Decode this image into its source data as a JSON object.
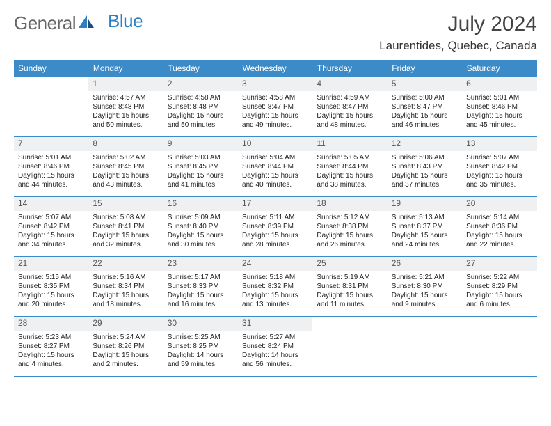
{
  "logo": {
    "text1": "General",
    "text2": "Blue"
  },
  "title": "July 2024",
  "location": "Laurentides, Quebec, Canada",
  "colors": {
    "header_bg": "#3b8bc9",
    "daynum_bg": "#eef0f2",
    "border": "#3b8bc9"
  },
  "weekdays": [
    "Sunday",
    "Monday",
    "Tuesday",
    "Wednesday",
    "Thursday",
    "Friday",
    "Saturday"
  ],
  "start_offset": 1,
  "days": [
    {
      "n": 1,
      "sr": "4:57 AM",
      "ss": "8:48 PM",
      "dl": "15 hours and 50 minutes."
    },
    {
      "n": 2,
      "sr": "4:58 AM",
      "ss": "8:48 PM",
      "dl": "15 hours and 50 minutes."
    },
    {
      "n": 3,
      "sr": "4:58 AM",
      "ss": "8:47 PM",
      "dl": "15 hours and 49 minutes."
    },
    {
      "n": 4,
      "sr": "4:59 AM",
      "ss": "8:47 PM",
      "dl": "15 hours and 48 minutes."
    },
    {
      "n": 5,
      "sr": "5:00 AM",
      "ss": "8:47 PM",
      "dl": "15 hours and 46 minutes."
    },
    {
      "n": 6,
      "sr": "5:01 AM",
      "ss": "8:46 PM",
      "dl": "15 hours and 45 minutes."
    },
    {
      "n": 7,
      "sr": "5:01 AM",
      "ss": "8:46 PM",
      "dl": "15 hours and 44 minutes."
    },
    {
      "n": 8,
      "sr": "5:02 AM",
      "ss": "8:45 PM",
      "dl": "15 hours and 43 minutes."
    },
    {
      "n": 9,
      "sr": "5:03 AM",
      "ss": "8:45 PM",
      "dl": "15 hours and 41 minutes."
    },
    {
      "n": 10,
      "sr": "5:04 AM",
      "ss": "8:44 PM",
      "dl": "15 hours and 40 minutes."
    },
    {
      "n": 11,
      "sr": "5:05 AM",
      "ss": "8:44 PM",
      "dl": "15 hours and 38 minutes."
    },
    {
      "n": 12,
      "sr": "5:06 AM",
      "ss": "8:43 PM",
      "dl": "15 hours and 37 minutes."
    },
    {
      "n": 13,
      "sr": "5:07 AM",
      "ss": "8:42 PM",
      "dl": "15 hours and 35 minutes."
    },
    {
      "n": 14,
      "sr": "5:07 AM",
      "ss": "8:42 PM",
      "dl": "15 hours and 34 minutes."
    },
    {
      "n": 15,
      "sr": "5:08 AM",
      "ss": "8:41 PM",
      "dl": "15 hours and 32 minutes."
    },
    {
      "n": 16,
      "sr": "5:09 AM",
      "ss": "8:40 PM",
      "dl": "15 hours and 30 minutes."
    },
    {
      "n": 17,
      "sr": "5:11 AM",
      "ss": "8:39 PM",
      "dl": "15 hours and 28 minutes."
    },
    {
      "n": 18,
      "sr": "5:12 AM",
      "ss": "8:38 PM",
      "dl": "15 hours and 26 minutes."
    },
    {
      "n": 19,
      "sr": "5:13 AM",
      "ss": "8:37 PM",
      "dl": "15 hours and 24 minutes."
    },
    {
      "n": 20,
      "sr": "5:14 AM",
      "ss": "8:36 PM",
      "dl": "15 hours and 22 minutes."
    },
    {
      "n": 21,
      "sr": "5:15 AM",
      "ss": "8:35 PM",
      "dl": "15 hours and 20 minutes."
    },
    {
      "n": 22,
      "sr": "5:16 AM",
      "ss": "8:34 PM",
      "dl": "15 hours and 18 minutes."
    },
    {
      "n": 23,
      "sr": "5:17 AM",
      "ss": "8:33 PM",
      "dl": "15 hours and 16 minutes."
    },
    {
      "n": 24,
      "sr": "5:18 AM",
      "ss": "8:32 PM",
      "dl": "15 hours and 13 minutes."
    },
    {
      "n": 25,
      "sr": "5:19 AM",
      "ss": "8:31 PM",
      "dl": "15 hours and 11 minutes."
    },
    {
      "n": 26,
      "sr": "5:21 AM",
      "ss": "8:30 PM",
      "dl": "15 hours and 9 minutes."
    },
    {
      "n": 27,
      "sr": "5:22 AM",
      "ss": "8:29 PM",
      "dl": "15 hours and 6 minutes."
    },
    {
      "n": 28,
      "sr": "5:23 AM",
      "ss": "8:27 PM",
      "dl": "15 hours and 4 minutes."
    },
    {
      "n": 29,
      "sr": "5:24 AM",
      "ss": "8:26 PM",
      "dl": "15 hours and 2 minutes."
    },
    {
      "n": 30,
      "sr": "5:25 AM",
      "ss": "8:25 PM",
      "dl": "14 hours and 59 minutes."
    },
    {
      "n": 31,
      "sr": "5:27 AM",
      "ss": "8:24 PM",
      "dl": "14 hours and 56 minutes."
    }
  ],
  "labels": {
    "sunrise": "Sunrise:",
    "sunset": "Sunset:",
    "daylight": "Daylight:"
  }
}
